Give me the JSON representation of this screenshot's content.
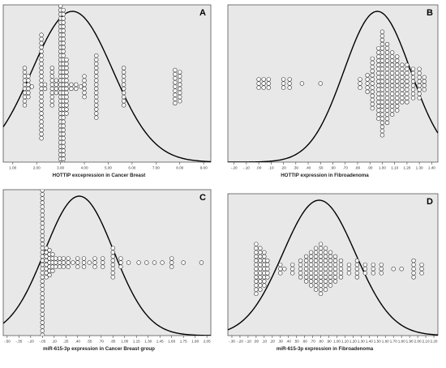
{
  "chart_data": [
    {
      "id": "A",
      "type": "scatter",
      "subtype": "dot-strip with fitted normal curve",
      "panel_letter": "A",
      "xlabel": "HOTTIP excepression in Cancer Breast",
      "ylabel": "",
      "xlim": [
        0.6,
        9.3
      ],
      "xticks": [
        1,
        2,
        3,
        4,
        5,
        6,
        7,
        8,
        9
      ],
      "xtick_labels": [
        "1.00",
        "2.00",
        "3.00",
        "4.00",
        "5.00",
        "6.00",
        "7.00",
        "8.00",
        "9.00"
      ],
      "normal_curve": {
        "mean": 3.5,
        "sd": 1.7
      },
      "columns": [
        {
          "x": 1.5,
          "count": 10
        },
        {
          "x": 1.65,
          "count": 6
        },
        {
          "x": 1.8,
          "count": 1
        },
        {
          "x": 2.2,
          "count": 26
        },
        {
          "x": 2.35,
          "count": 2
        },
        {
          "x": 2.65,
          "count": 10
        },
        {
          "x": 2.82,
          "count": 4
        },
        {
          "x": 3.0,
          "count": 40
        },
        {
          "x": 3.12,
          "count": 38
        },
        {
          "x": 3.25,
          "count": 14
        },
        {
          "x": 3.45,
          "count": 2
        },
        {
          "x": 3.65,
          "count": 2
        },
        {
          "x": 3.85,
          "count": 1
        },
        {
          "x": 4.0,
          "count": 6
        },
        {
          "x": 4.5,
          "count": 16
        },
        {
          "x": 5.65,
          "count": 10
        },
        {
          "x": 7.8,
          "count": 9
        },
        {
          "x": 8.0,
          "count": 8
        }
      ],
      "grid": false
    },
    {
      "id": "B",
      "type": "scatter",
      "subtype": "dot-strip with fitted normal curve",
      "panel_letter": "B",
      "xlabel": "HOTTIP  expression in  Fibroadenoma",
      "ylabel": "",
      "xlim": [
        -0.25,
        1.45
      ],
      "xticks": [
        -0.2,
        -0.1,
        0,
        0.1,
        0.2,
        0.3,
        0.4,
        0.5,
        0.6,
        0.7,
        0.8,
        0.9,
        1.0,
        1.1,
        1.2,
        1.3,
        1.4
      ],
      "xtick_labels": [
        "-.20",
        "-.10",
        ".00",
        ".10",
        ".20",
        ".30",
        ".40",
        ".50",
        ".60",
        ".70",
        ".80",
        ".90",
        "1.00",
        "1.10",
        "1.20",
        "1.30",
        "1.40"
      ],
      "normal_curve": {
        "mean": 0.96,
        "sd": 0.27
      },
      "columns": [
        {
          "x": 0.0,
          "count": 3
        },
        {
          "x": 0.04,
          "count": 3
        },
        {
          "x": 0.08,
          "count": 3
        },
        {
          "x": 0.2,
          "count": 3
        },
        {
          "x": 0.25,
          "count": 3
        },
        {
          "x": 0.35,
          "count": 1
        },
        {
          "x": 0.5,
          "count": 1
        },
        {
          "x": 0.82,
          "count": 3
        },
        {
          "x": 0.88,
          "count": 5
        },
        {
          "x": 0.92,
          "count": 13
        },
        {
          "x": 0.97,
          "count": 18
        },
        {
          "x": 1.0,
          "count": 26
        },
        {
          "x": 1.04,
          "count": 20
        },
        {
          "x": 1.08,
          "count": 16
        },
        {
          "x": 1.12,
          "count": 14
        },
        {
          "x": 1.16,
          "count": 10
        },
        {
          "x": 1.2,
          "count": 10
        },
        {
          "x": 1.25,
          "count": 8
        },
        {
          "x": 1.3,
          "count": 8
        },
        {
          "x": 1.34,
          "count": 4
        }
      ],
      "grid": false
    },
    {
      "id": "C",
      "type": "scatter",
      "subtype": "dot-strip with fitted normal curve",
      "panel_letter": "C",
      "xlabel": "miR-615-3p expression in Cancer Breast group",
      "ylabel": "",
      "xlim": [
        -0.55,
        2.1
      ],
      "xticks": [
        -0.5,
        -0.35,
        -0.2,
        -0.05,
        0.1,
        0.25,
        0.4,
        0.55,
        0.7,
        0.85,
        1.0,
        1.15,
        1.3,
        1.45,
        1.6,
        1.75,
        1.9,
        2.05
      ],
      "xtick_labels": [
        "-.50",
        "-.35",
        "-.20",
        "-.05",
        ".10",
        ".25",
        ".40",
        ".55",
        ".70",
        ".85",
        "1.00",
        "1.15",
        "1.30",
        "1.45",
        "1.60",
        "1.75",
        "1.90",
        "2.05"
      ],
      "normal_curve": {
        "mean": 0.42,
        "sd": 0.44
      },
      "columns": [
        {
          "x": -0.05,
          "count": 52
        },
        {
          "x": 0.0,
          "count": 8
        },
        {
          "x": 0.04,
          "count": 7
        },
        {
          "x": 0.08,
          "count": 5
        },
        {
          "x": 0.12,
          "count": 3
        },
        {
          "x": 0.17,
          "count": 3
        },
        {
          "x": 0.22,
          "count": 3
        },
        {
          "x": 0.28,
          "count": 3
        },
        {
          "x": 0.34,
          "count": 1
        },
        {
          "x": 0.4,
          "count": 3
        },
        {
          "x": 0.48,
          "count": 3
        },
        {
          "x": 0.55,
          "count": 1
        },
        {
          "x": 0.62,
          "count": 3
        },
        {
          "x": 0.72,
          "count": 3
        },
        {
          "x": 0.85,
          "count": 8
        },
        {
          "x": 0.95,
          "count": 3
        },
        {
          "x": 1.05,
          "count": 1
        },
        {
          "x": 1.18,
          "count": 1
        },
        {
          "x": 1.28,
          "count": 1
        },
        {
          "x": 1.38,
          "count": 1
        },
        {
          "x": 1.48,
          "count": 1
        },
        {
          "x": 1.6,
          "count": 3
        },
        {
          "x": 1.75,
          "count": 1
        },
        {
          "x": 1.98,
          "count": 1
        }
      ],
      "grid": false
    },
    {
      "id": "D",
      "type": "scatter",
      "subtype": "dot-strip with fitted normal curve",
      "panel_letter": "D",
      "xlabel": "miR-615-3p  expression in  Fibroadenoma",
      "ylabel": "",
      "xlim": [
        -0.35,
        2.25
      ],
      "xticks": [
        -0.3,
        -0.2,
        -0.1,
        0,
        0.1,
        0.2,
        0.3,
        0.4,
        0.5,
        0.6,
        0.7,
        0.8,
        0.9,
        1.0,
        1.1,
        1.2,
        1.3,
        1.4,
        1.5,
        1.6,
        1.7,
        1.8,
        1.9,
        2.0,
        2.1,
        2.2
      ],
      "xtick_labels": [
        "-.30",
        "-.20",
        "-.10",
        ".00",
        ".10",
        ".20",
        ".30",
        ".40",
        ".50",
        ".60",
        ".70",
        ".80",
        ".90",
        "1.00",
        "1.10",
        "1.20",
        "1.30",
        "1.40",
        "1.50",
        "1.60",
        "1.70",
        "1.80",
        "1.90",
        "2.00",
        "2.10",
        "2.20"
      ],
      "normal_curve": {
        "mean": 0.78,
        "sd": 0.45
      },
      "columns": [
        {
          "x": 0.0,
          "count": 13
        },
        {
          "x": 0.05,
          "count": 11
        },
        {
          "x": 0.1,
          "count": 9
        },
        {
          "x": 0.14,
          "count": 5
        },
        {
          "x": 0.3,
          "count": 3
        },
        {
          "x": 0.35,
          "count": 1
        },
        {
          "x": 0.45,
          "count": 3
        },
        {
          "x": 0.55,
          "count": 5
        },
        {
          "x": 0.62,
          "count": 7
        },
        {
          "x": 0.68,
          "count": 9
        },
        {
          "x": 0.74,
          "count": 11
        },
        {
          "x": 0.8,
          "count": 13
        },
        {
          "x": 0.86,
          "count": 11
        },
        {
          "x": 0.92,
          "count": 9
        },
        {
          "x": 0.98,
          "count": 7
        },
        {
          "x": 1.05,
          "count": 5
        },
        {
          "x": 1.15,
          "count": 3
        },
        {
          "x": 1.25,
          "count": 5
        },
        {
          "x": 1.35,
          "count": 3
        },
        {
          "x": 1.45,
          "count": 3
        },
        {
          "x": 1.55,
          "count": 3
        },
        {
          "x": 1.7,
          "count": 1
        },
        {
          "x": 1.8,
          "count": 1
        },
        {
          "x": 1.95,
          "count": 5
        },
        {
          "x": 2.05,
          "count": 3
        }
      ],
      "grid": false
    }
  ],
  "style": {
    "panel_bg": "#e8e8e8",
    "dot_fill": "#ffffff",
    "dot_stroke": "#333333",
    "curve_color": "#000000",
    "frame_color": "#555555"
  }
}
